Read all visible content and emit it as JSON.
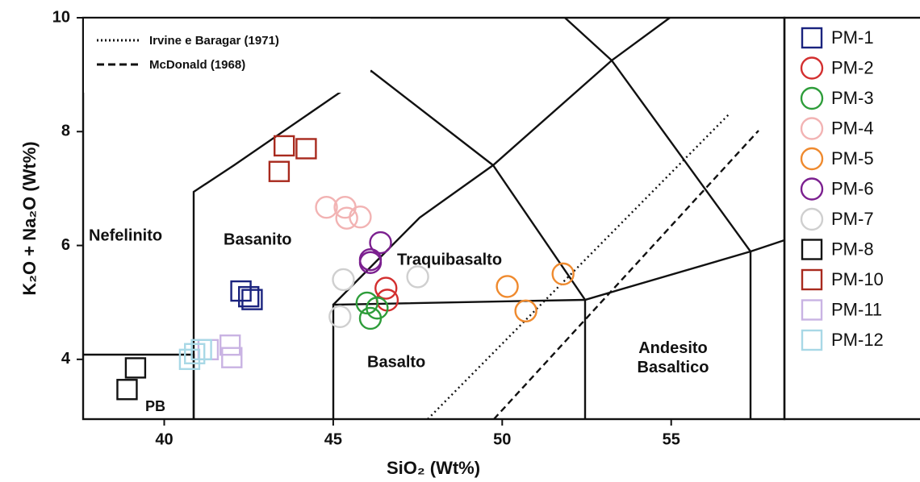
{
  "chart_data": {
    "type": "scatter",
    "xlabel": "SiO₂ (Wt%)",
    "ylabel": "K₂O + Na₂O (Wt%)",
    "xlim": [
      37.6,
      58.35
    ],
    "ylim": [
      2.95,
      10
    ],
    "xticks": [
      40,
      45,
      50,
      55
    ],
    "yticks": [
      4,
      6,
      8,
      10
    ],
    "reference_lines": [
      "Irvine e Baragar (1971)",
      "McDonald (1968)"
    ],
    "fields": [
      "Nefelinito",
      "Basanito",
      "Traquibasalto",
      "Basalto",
      "Andesito\nBasaltico",
      "PB"
    ],
    "series": [
      {
        "name": "PM-1",
        "color": "#1a237e",
        "marker": "square",
        "x": [
          42.27,
          42.5,
          42.6
        ],
        "y": [
          5.2,
          5.1,
          5.05
        ]
      },
      {
        "name": "PM-2",
        "color": "#d32f2f",
        "marker": "circle",
        "x": [
          46.56,
          46.6
        ],
        "y": [
          5.25,
          5.04
        ]
      },
      {
        "name": "PM-3",
        "color": "#2e9d3a",
        "marker": "circle",
        "x": [
          46.0,
          46.3,
          46.1
        ],
        "y": [
          4.99,
          4.9,
          4.72
        ]
      },
      {
        "name": "PM-4",
        "color": "#f2b3b3",
        "marker": "circle",
        "x": [
          44.8,
          45.35,
          45.8,
          45.4
        ],
        "y": [
          6.67,
          6.67,
          6.5,
          6.48
        ]
      },
      {
        "name": "PM-5",
        "color": "#ef8a2e",
        "marker": "circle",
        "x": [
          50.15,
          50.7,
          51.8
        ],
        "y": [
          5.28,
          4.85,
          5.5
        ]
      },
      {
        "name": "PM-6",
        "color": "#7b1f8f",
        "marker": "circle",
        "x": [
          46.4,
          46.1,
          46.1
        ],
        "y": [
          6.05,
          5.75,
          5.7
        ]
      },
      {
        "name": "PM-7",
        "color": "#cfcfcf",
        "marker": "circle",
        "x": [
          45.3,
          47.5,
          45.2
        ],
        "y": [
          5.4,
          5.45,
          4.75
        ]
      },
      {
        "name": "PM-8",
        "color": "#111111",
        "marker": "square",
        "x": [
          39.15,
          38.9
        ],
        "y": [
          3.85,
          3.47
        ]
      },
      {
        "name": "PM-10",
        "color": "#a82a1e",
        "marker": "square",
        "x": [
          43.55,
          44.2,
          43.4
        ],
        "y": [
          7.75,
          7.7,
          7.3
        ]
      },
      {
        "name": "PM-11",
        "color": "#c9b3e3",
        "marker": "square",
        "x": [
          41.95,
          42.0,
          41.3
        ],
        "y": [
          4.25,
          4.03,
          4.17
        ]
      },
      {
        "name": "PM-12",
        "color": "#a8d8e6",
        "marker": "square",
        "x": [
          40.9,
          41.1,
          40.75
        ],
        "y": [
          4.1,
          4.17,
          4.0
        ]
      }
    ]
  }
}
